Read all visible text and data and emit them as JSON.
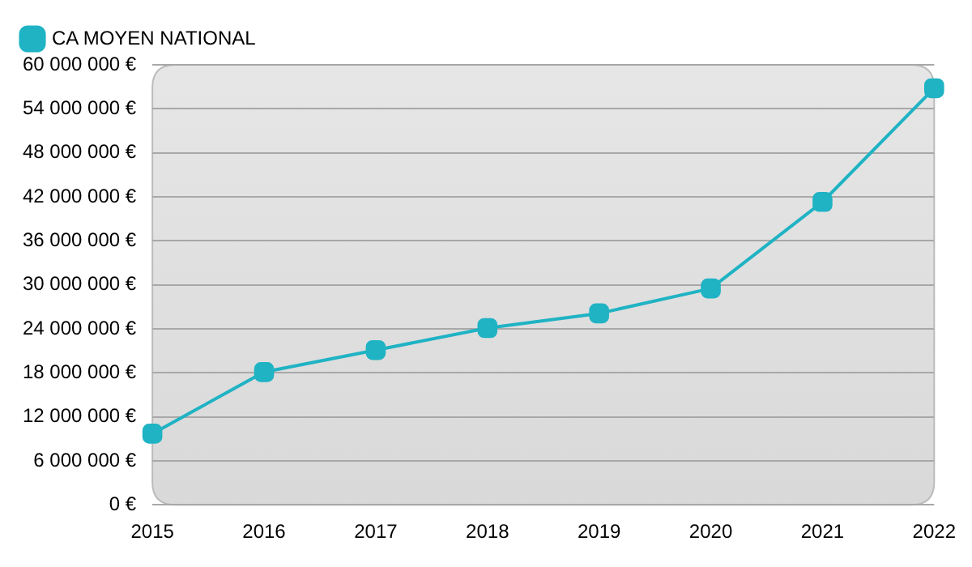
{
  "chart_data": {
    "type": "line",
    "categories": [
      "2015",
      "2016",
      "2017",
      "2018",
      "2019",
      "2020",
      "2021",
      "2022"
    ],
    "series": [
      {
        "name": "CA MOYEN NATIONAL",
        "color": "#1fb3c4",
        "values": [
          9700000,
          18100000,
          21100000,
          24100000,
          26100000,
          29500000,
          41300000,
          56800000
        ]
      }
    ],
    "ylim": [
      0,
      60000000
    ],
    "yticks": [
      {
        "value": 0,
        "label": "0 €"
      },
      {
        "value": 6000000,
        "label": "6 000 000 €"
      },
      {
        "value": 12000000,
        "label": "12 000 000 €"
      },
      {
        "value": 18000000,
        "label": "18 000 000 €"
      },
      {
        "value": 24000000,
        "label": "24 000 000 €"
      },
      {
        "value": 30000000,
        "label": "30 000 000 €"
      },
      {
        "value": 36000000,
        "label": "36 000 000 €"
      },
      {
        "value": 42000000,
        "label": "42 000 000 €"
      },
      {
        "value": 48000000,
        "label": "48 000 000 €"
      },
      {
        "value": 54000000,
        "label": "54 000 000 €"
      },
      {
        "value": 60000000,
        "label": "60 000 000 €"
      }
    ],
    "grid": "y",
    "legend": "top left",
    "marker": "square",
    "line_style": "solid"
  }
}
